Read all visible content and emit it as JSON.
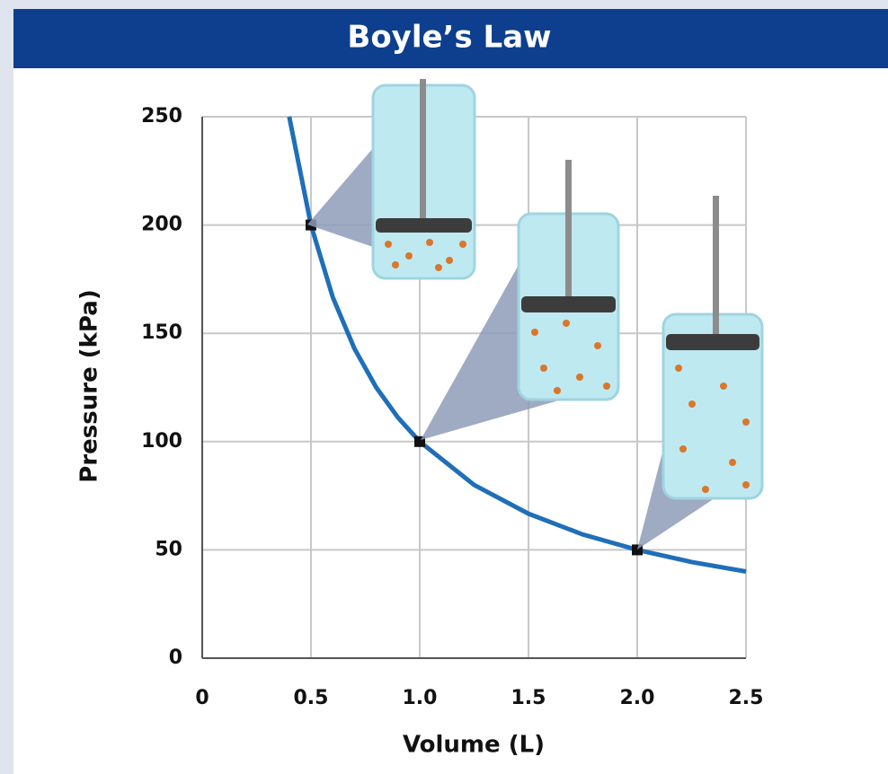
{
  "chart_data": {
    "type": "line",
    "title": "Boyle’s Law",
    "xlabel": "Volume (L)",
    "ylabel": "Pressure (kPa)",
    "series": [
      {
        "color": "#1f6fb8",
        "x": [
          0.4,
          0.5,
          0.6,
          0.7,
          0.8,
          0.9,
          1.0,
          1.25,
          1.5,
          1.75,
          2.0,
          2.25,
          2.5
        ],
        "values": [
          250,
          200,
          166.7,
          142.9,
          125,
          111.1,
          100,
          80,
          66.7,
          57.1,
          50,
          44.4,
          40
        ]
      }
    ],
    "markers": {
      "x": [
        0.5,
        1.0,
        2.0
      ],
      "values": [
        200,
        100,
        50
      ],
      "color": "#111111"
    },
    "xlim": [
      0,
      2.5
    ],
    "ylim": [
      0,
      250
    ],
    "xticks": [
      0,
      0.5,
      {
        "value": 1,
        "label": "1.0"
      },
      1.5,
      {
        "value": 2,
        "label": "2.0"
      },
      2.5
    ],
    "yticks": [
      0,
      50,
      100,
      150,
      200,
      250
    ],
    "grid": true
  }
}
